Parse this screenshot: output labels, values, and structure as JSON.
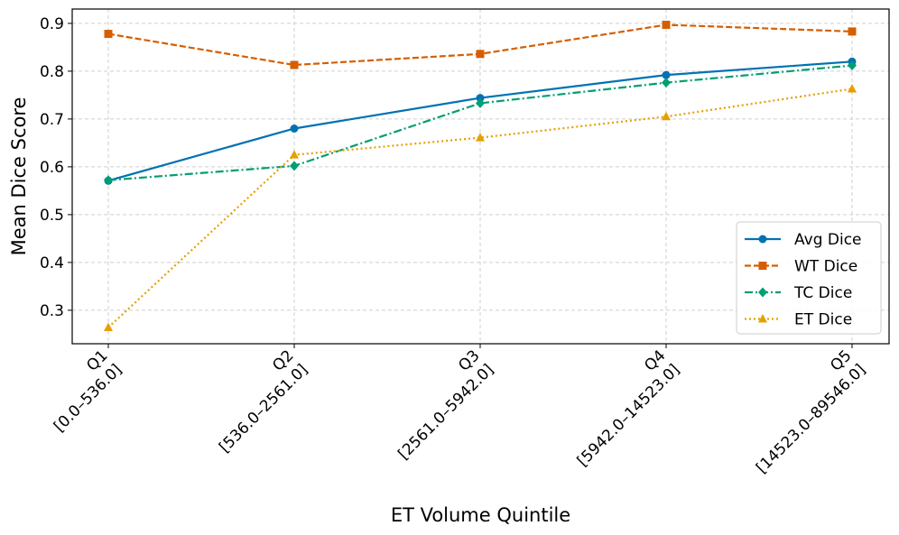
{
  "chart_data": {
    "type": "line",
    "title": "",
    "xlabel": "ET Volume Quintile",
    "ylabel": "Mean Dice Score",
    "categories": [
      {
        "line1": "Q1",
        "line2": "[0.0–536.0]"
      },
      {
        "line1": "Q2",
        "line2": "[536.0–2561.0]"
      },
      {
        "line1": "Q3",
        "line2": "[2561.0–5942.0]"
      },
      {
        "line1": "Q4",
        "line2": "[5942.0–14523.0]"
      },
      {
        "line1": "Q5",
        "line2": "[14523.0–89546.0]"
      }
    ],
    "ylim": [
      0.23,
      0.93
    ],
    "yticks": [
      0.3,
      0.4,
      0.5,
      0.6,
      0.7,
      0.8,
      0.9
    ],
    "ytick_labels": [
      "0.3",
      "0.4",
      "0.5",
      "0.6",
      "0.7",
      "0.8",
      "0.9"
    ],
    "grid": true,
    "legend_position": "lower-right",
    "series": [
      {
        "name": "Avg Dice",
        "color": "#0072B2",
        "marker": "circle",
        "dash": "solid",
        "values": [
          0.571,
          0.68,
          0.744,
          0.792,
          0.82
        ]
      },
      {
        "name": "WT Dice",
        "color": "#D55E00",
        "marker": "square",
        "dash": "dashed",
        "values": [
          0.878,
          0.813,
          0.836,
          0.897,
          0.883
        ]
      },
      {
        "name": "TC Dice",
        "color": "#009E73",
        "marker": "diamond",
        "dash": "dashdot",
        "values": [
          0.572,
          0.602,
          0.733,
          0.776,
          0.812
        ]
      },
      {
        "name": "ET Dice",
        "color": "#E69F00",
        "marker": "triangle",
        "dash": "dotted",
        "values": [
          0.264,
          0.625,
          0.661,
          0.705,
          0.763
        ]
      }
    ]
  }
}
